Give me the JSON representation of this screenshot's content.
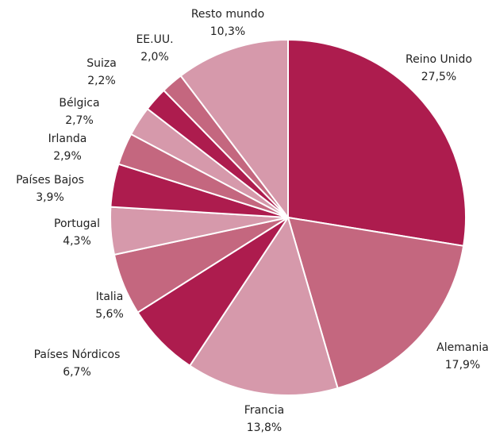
{
  "chart_data": {
    "type": "pie",
    "categories": [
      "Reino Unido",
      "Alemania",
      "Francia",
      "Países Nórdicos",
      "Italia",
      "Portugal",
      "Países Bajos",
      "Irlanda",
      "Bélgica",
      "Suiza",
      "EE.UU.",
      "Resto mundo"
    ],
    "values": [
      27.5,
      17.9,
      13.8,
      6.7,
      5.6,
      4.3,
      3.9,
      2.9,
      2.7,
      2.2,
      2.0,
      10.3
    ],
    "value_labels": [
      "27,5%",
      "17,9%",
      "13,8%",
      "6,7%",
      "5,6%",
      "4,3%",
      "3,9%",
      "2,9%",
      "2,7%",
      "2,2%",
      "2,0%",
      "10,3%"
    ],
    "colors": [
      "#ad1c4e",
      "#c4677f",
      "#d699ab",
      "#ad1c4e",
      "#c4677f",
      "#d699ab",
      "#ad1c4e",
      "#c4677f",
      "#d699ab",
      "#ad1c4e",
      "#c4677f",
      "#d699ab"
    ]
  }
}
